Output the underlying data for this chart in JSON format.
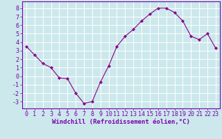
{
  "x": [
    0,
    1,
    2,
    3,
    4,
    5,
    6,
    7,
    8,
    9,
    10,
    11,
    12,
    13,
    14,
    15,
    16,
    17,
    18,
    19,
    20,
    21,
    22,
    23
  ],
  "y": [
    3.5,
    2.5,
    1.5,
    1.0,
    -0.2,
    -0.3,
    -2.0,
    -3.2,
    -3.0,
    -0.7,
    1.2,
    3.5,
    4.7,
    5.5,
    6.5,
    7.3,
    8.0,
    8.0,
    7.5,
    6.5,
    4.7,
    4.3,
    5.0,
    3.3
  ],
  "line_color": "#880088",
  "marker": "D",
  "marker_size": 2.0,
  "bg_color": "#cce8ec",
  "grid_color": "#b0d8de",
  "xlabel": "Windchill (Refroidissement éolien,°C)",
  "xlim": [
    -0.5,
    23.5
  ],
  "ylim": [
    -3.8,
    8.8
  ],
  "yticks": [
    -3,
    -2,
    -1,
    0,
    1,
    2,
    3,
    4,
    5,
    6,
    7,
    8
  ],
  "xticks": [
    0,
    1,
    2,
    3,
    4,
    5,
    6,
    7,
    8,
    9,
    10,
    11,
    12,
    13,
    14,
    15,
    16,
    17,
    18,
    19,
    20,
    21,
    22,
    23
  ],
  "xlabel_fontsize": 6.5,
  "tick_fontsize": 6.0,
  "border_color": "#7700aa",
  "axis_color": "#7700aa",
  "white_grid": "#ffffff"
}
